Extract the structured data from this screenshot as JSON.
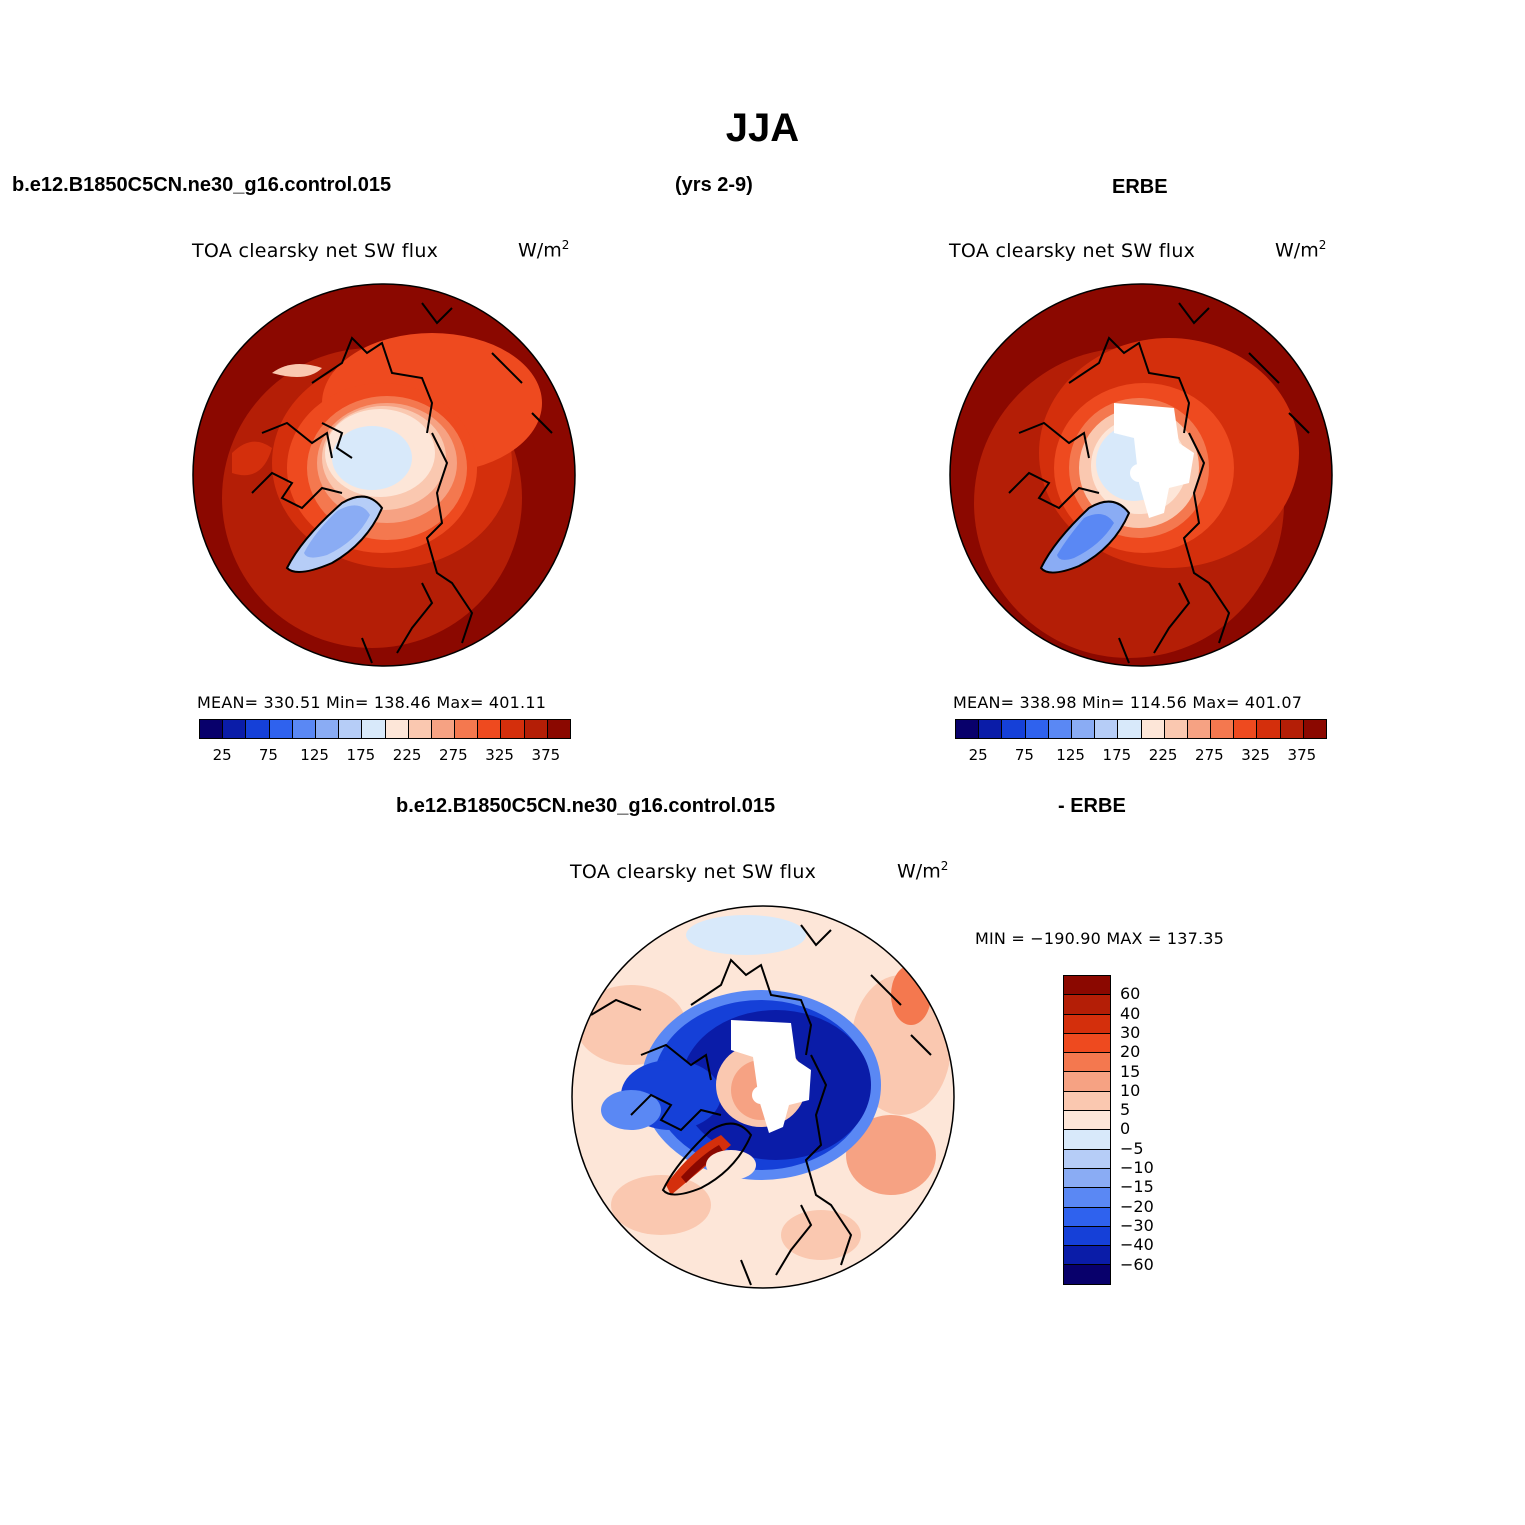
{
  "title": "JJA",
  "header": {
    "case": "b.e12.B1850C5CN.ne30_g16.control.015",
    "years": "(yrs 2-9)",
    "obs": "ERBE"
  },
  "diff_header": {
    "case": "b.e12.B1850C5CN.ne30_g16.control.015",
    "obs": "- ERBE"
  },
  "panels": {
    "model": {
      "title": "TOA clearsky net SW flux",
      "units": "W/m",
      "units_sup": "2",
      "stats": "MEAN= 330.51   Min= 138.46   Max= 401.11"
    },
    "obs": {
      "title": "TOA clearsky net SW flux",
      "units": "W/m",
      "units_sup": "2",
      "stats": "MEAN= 338.98   Min= 114.56   Max= 401.07"
    },
    "diff": {
      "title": "TOA clearsky net SW flux",
      "units": "W/m",
      "units_sup": "2",
      "stats": "MIN = −190.90 MAX = 137.35"
    }
  },
  "colorbar_abs": {
    "tick_labels": [
      "25",
      "75",
      "125",
      "175",
      "225",
      "275",
      "325",
      "375"
    ],
    "colors": [
      "#08006b",
      "#0a1ca8",
      "#1540d8",
      "#2f62ee",
      "#5a88f4",
      "#8aacf4",
      "#b6cdf7",
      "#d8e9fa",
      "#fde6d8",
      "#fac8b0",
      "#f6a283",
      "#f4784f",
      "#ee4a1f",
      "#d42f0c",
      "#b41e06",
      "#8b0800"
    ]
  },
  "colorbar_diff": {
    "labels": [
      "60",
      "40",
      "30",
      "20",
      "15",
      "10",
      "5",
      "0",
      "−5",
      "−10",
      "−15",
      "−20",
      "−30",
      "−40",
      "−60"
    ],
    "colors": [
      "#8b0800",
      "#b41e06",
      "#d42f0c",
      "#ee4a1f",
      "#f4784f",
      "#f6a283",
      "#fac8b0",
      "#fde6d8",
      "#d8e9fa",
      "#b6cdf7",
      "#8aacf4",
      "#5a88f4",
      "#2f62ee",
      "#1540d8",
      "#0a1ca8",
      "#08006b"
    ]
  }
}
